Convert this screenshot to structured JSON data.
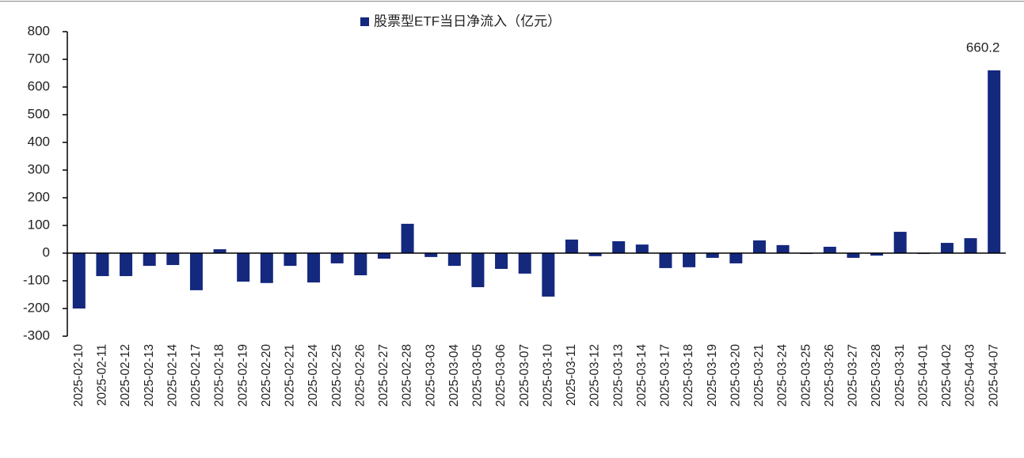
{
  "chart_data": {
    "type": "bar",
    "legend": "股票型ETF当日净流入（亿元）",
    "color": "#14287e",
    "categories": [
      "2025-02-10",
      "2025-02-11",
      "2025-02-12",
      "2025-02-13",
      "2025-02-14",
      "2025-02-17",
      "2025-02-18",
      "2025-02-19",
      "2025-02-20",
      "2025-02-21",
      "2025-02-24",
      "2025-02-25",
      "2025-02-26",
      "2025-02-27",
      "2025-02-28",
      "2025-03-03",
      "2025-03-04",
      "2025-03-05",
      "2025-03-06",
      "2025-03-07",
      "2025-03-10",
      "2025-03-11",
      "2025-03-12",
      "2025-03-13",
      "2025-03-14",
      "2025-03-17",
      "2025-03-18",
      "2025-03-19",
      "2025-03-20",
      "2025-03-21",
      "2025-03-24",
      "2025-03-25",
      "2025-03-26",
      "2025-03-27",
      "2025-03-28",
      "2025-03-31",
      "2025-04-01",
      "2025-04-02",
      "2025-04-03",
      "2025-04-07"
    ],
    "values": [
      -200,
      -83,
      -83,
      -46,
      -43,
      -134,
      14,
      -103,
      -108,
      -46,
      -106,
      -37,
      -80,
      -20,
      106,
      -14,
      -46,
      -123,
      -57,
      -74,
      -157,
      49,
      -11,
      43,
      31,
      -54,
      -51,
      -17,
      -37,
      46,
      29,
      -3,
      23,
      -17,
      -9,
      77,
      -3,
      37,
      54,
      660.2
    ],
    "value_labels": [
      null,
      null,
      null,
      null,
      null,
      null,
      null,
      null,
      null,
      null,
      null,
      null,
      null,
      null,
      null,
      null,
      null,
      null,
      null,
      null,
      null,
      null,
      null,
      null,
      null,
      null,
      null,
      null,
      null,
      null,
      null,
      null,
      null,
      null,
      null,
      null,
      null,
      null,
      null,
      "660.2"
    ],
    "ylim": [
      -300,
      800
    ],
    "yticks": [
      -300,
      -200,
      -100,
      0,
      100,
      200,
      300,
      400,
      500,
      600,
      700,
      800
    ]
  }
}
